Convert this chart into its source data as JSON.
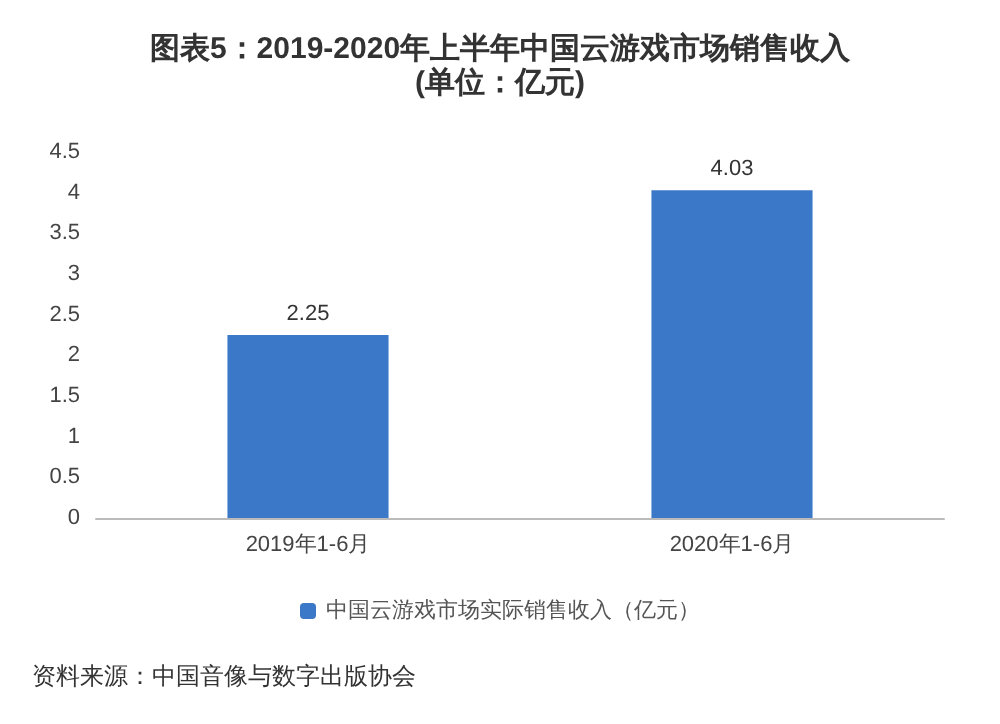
{
  "chart_data": {
    "type": "bar",
    "title": "图表5：2019-2020年上半年中国云游戏市场销售收入",
    "subtitle": "(单位：亿元)",
    "categories": [
      "2019年1-6月",
      "2020年1-6月"
    ],
    "series": [
      {
        "name": "中国云游戏市场实际销售收入（亿元）",
        "color": "#3c78c8",
        "values": [
          2.25,
          4.03
        ]
      }
    ],
    "ylim": [
      0,
      4.5
    ],
    "yticks": [
      0,
      0.5,
      1,
      1.5,
      2,
      2.5,
      3,
      3.5,
      4,
      4.5
    ],
    "grid": false,
    "legend": "bottom",
    "data_labels": true,
    "annotations": [
      "资料来源：中国音像与数字出版协会"
    ]
  }
}
